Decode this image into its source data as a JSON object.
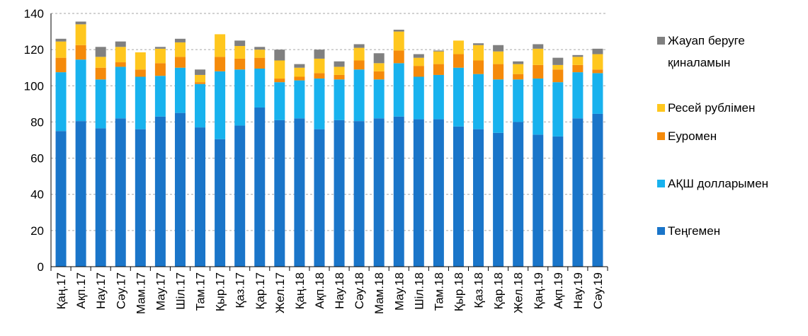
{
  "chart_data": {
    "type": "stacked_bar",
    "categories": [
      "Қаң.17",
      "Ақп.17",
      "Нау.17",
      "Сәу.17",
      "Мам.17",
      "Мау.17",
      "Шіл.17",
      "Там.17",
      "Қыр.17",
      "Қаз.17",
      "Қар.17",
      "Жел.17",
      "Қаң.18",
      "Ақп.18",
      "Нау.18",
      "Сәу.18",
      "Мам.18",
      "Мау.18",
      "Шіл.18",
      "Там.18",
      "Қыр.18",
      "Қаз.18",
      "Қар.18",
      "Жел.18",
      "Қаң.19",
      "Ақп.19",
      "Нау.19",
      "Сәу.19"
    ],
    "series": [
      {
        "name": "Теңгемен",
        "color": "#1a75c9",
        "values": [
          75,
          80.5,
          76.5,
          82,
          76,
          83,
          85,
          77,
          70.5,
          78,
          88,
          81,
          82,
          76,
          81,
          80.5,
          82,
          83,
          81.5,
          81.5,
          77.5,
          76,
          74,
          80,
          73,
          72,
          82,
          84.5
        ]
      },
      {
        "name": "АҚШ долларымен",
        "color": "#18b2ee",
        "values": [
          32.5,
          34,
          27,
          28.5,
          29,
          22.5,
          25,
          24,
          37.5,
          31,
          21.5,
          21,
          21,
          28,
          22.5,
          28.5,
          21.5,
          29.5,
          23.5,
          24.5,
          32.5,
          30.5,
          29.5,
          23.5,
          31,
          30,
          25.5,
          22.5
        ]
      },
      {
        "name": "Еуромен",
        "color": "#f58a0a",
        "values": [
          8,
          8,
          6.5,
          2.5,
          4,
          7,
          6,
          1,
          8,
          6,
          6,
          2,
          2,
          3,
          2.5,
          5,
          4.5,
          7,
          6,
          6,
          7.5,
          7.5,
          8.5,
          3,
          7.5,
          7,
          4,
          2
        ]
      },
      {
        "name": "Ресей рублімен",
        "color": "#ffc71e",
        "values": [
          9,
          11.5,
          6,
          8.5,
          9.5,
          8,
          8,
          4,
          12.5,
          7,
          4.5,
          10,
          5,
          8,
          4.5,
          7,
          4.5,
          10.5,
          4.5,
          7,
          7.5,
          8.5,
          7,
          5.5,
          9,
          2.5,
          4.5,
          8.5
        ]
      },
      {
        "name": "Жауап беруге қиналамын",
        "color": "#808080",
        "values": [
          1.5,
          1.5,
          5.5,
          3,
          0,
          1,
          2,
          3,
          0,
          3,
          1.5,
          6,
          2,
          5,
          3,
          2,
          5.5,
          1,
          2,
          0.5,
          0,
          1,
          3.5,
          1.5,
          2.5,
          4,
          1,
          3
        ]
      }
    ],
    "ylim": [
      0,
      140
    ],
    "yticks": [
      0,
      20,
      40,
      60,
      80,
      100,
      120,
      140
    ],
    "grid": true,
    "legend": "right"
  }
}
